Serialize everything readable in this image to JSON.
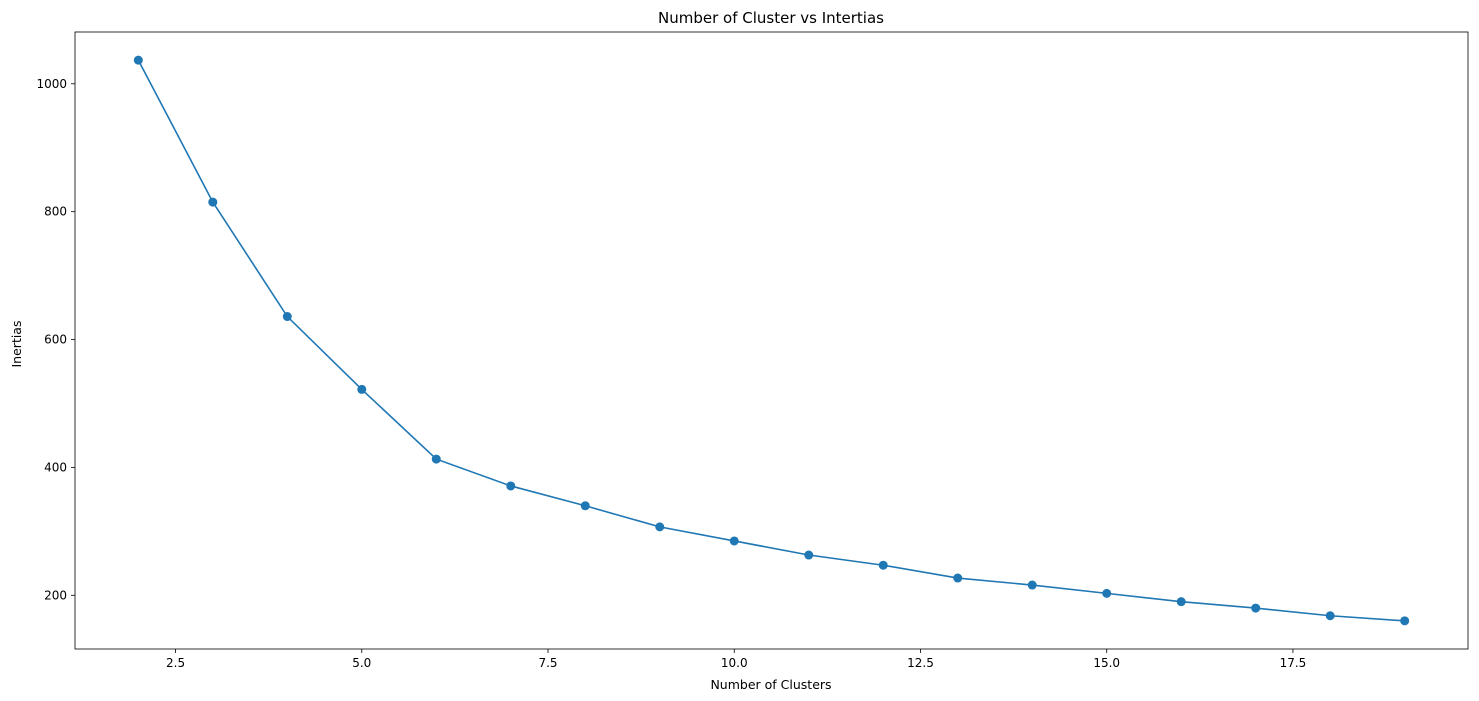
{
  "chart_data": {
    "type": "line",
    "title": "Number of Cluster vs Intertias",
    "xlabel": "Number of Clusters",
    "ylabel": "Inertias",
    "x": [
      2,
      3,
      4,
      5,
      6,
      7,
      8,
      9,
      10,
      11,
      12,
      13,
      14,
      15,
      16,
      17,
      18,
      19
    ],
    "series": [
      {
        "values": [
          1037,
          815,
          636,
          522,
          413,
          371,
          340,
          307,
          285,
          263,
          247,
          227,
          216,
          203,
          190,
          180,
          168,
          160
        ],
        "color": "#1f77b4",
        "marker": "circle"
      }
    ],
    "xlim": [
      1.15,
      19.85
    ],
    "ylim": [
      116,
      1081
    ],
    "xticks": [
      2.5,
      5.0,
      7.5,
      10.0,
      12.5,
      15.0,
      17.5
    ],
    "xtick_labels": [
      "2.5",
      "5.0",
      "7.5",
      "10.0",
      "12.5",
      "15.0",
      "17.5"
    ],
    "yticks": [
      200,
      400,
      600,
      800,
      1000
    ],
    "ytick_labels": [
      "200",
      "400",
      "600",
      "800",
      "1000"
    ],
    "grid": false,
    "legend": "none"
  }
}
